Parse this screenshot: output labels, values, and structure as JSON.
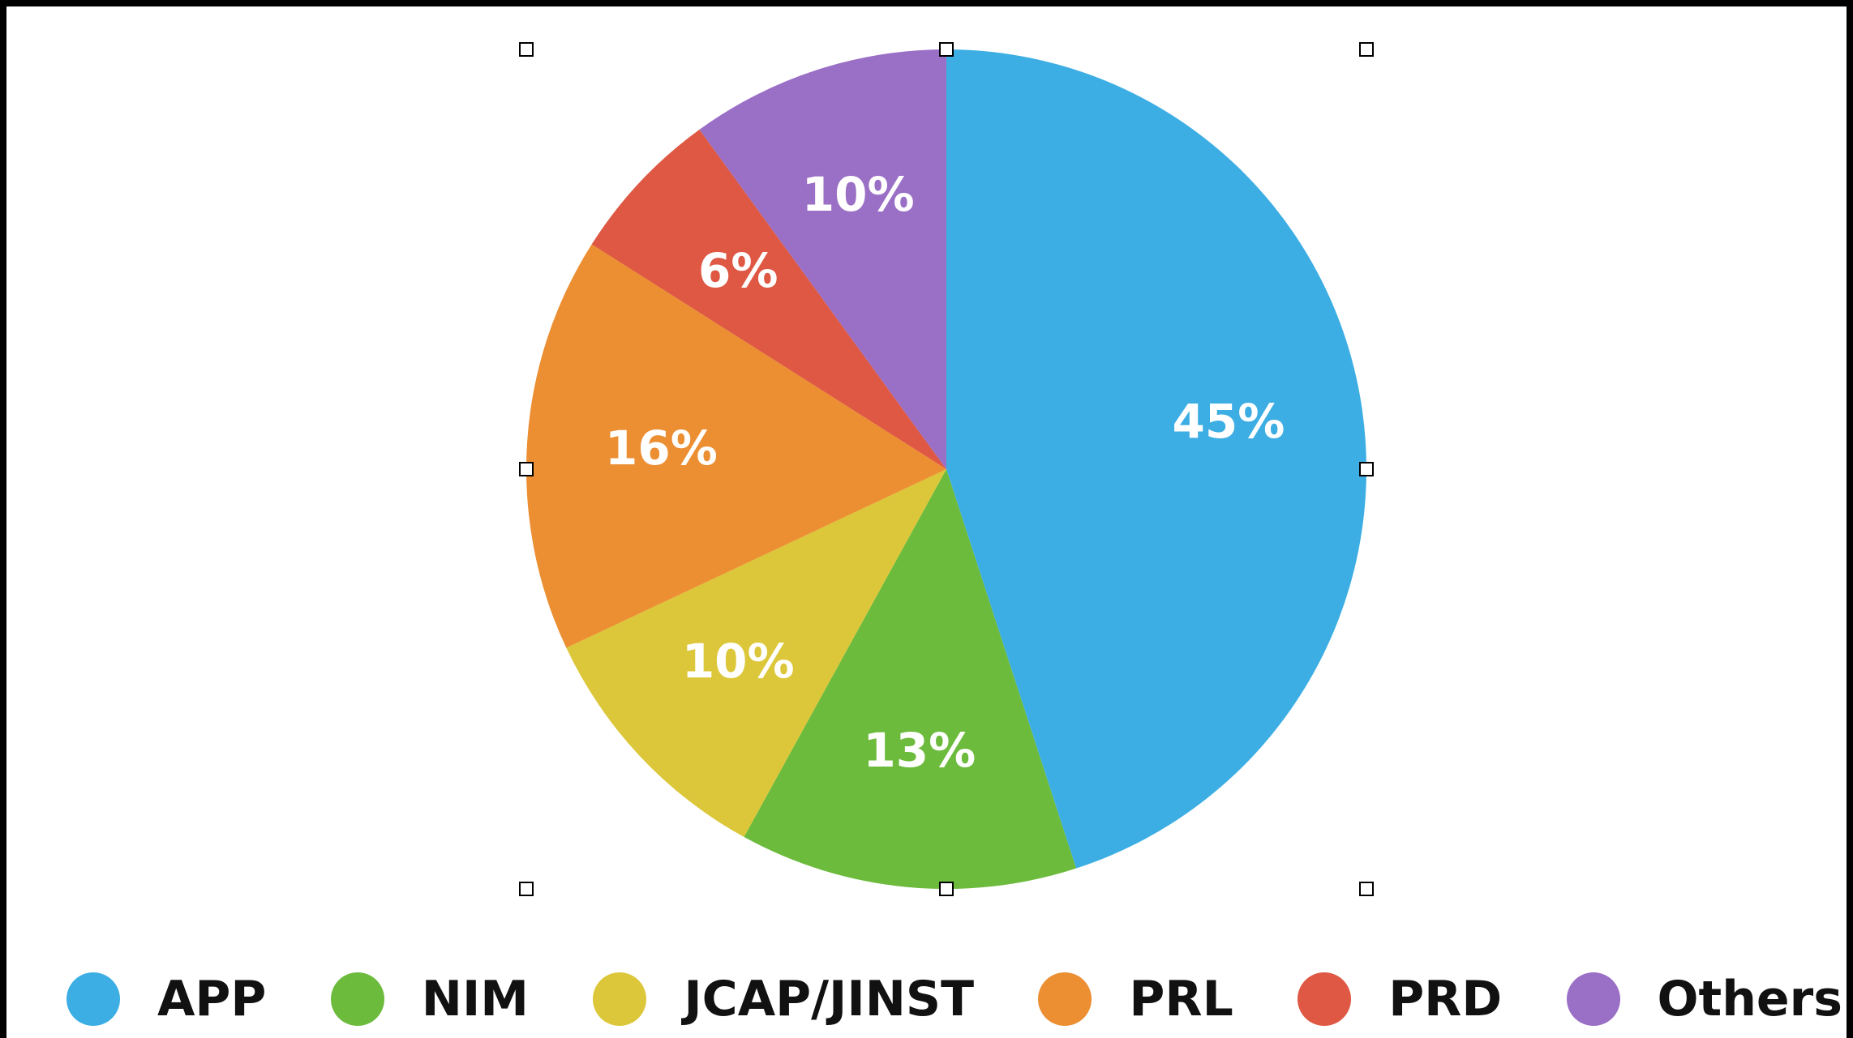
{
  "chart_data": {
    "type": "pie",
    "title": "",
    "start_angle_deg": 0,
    "direction": "clockwise",
    "legend_position": "bottom",
    "slices": [
      {
        "name": "APP",
        "value": 45,
        "label": "45%",
        "color": "#3daee3"
      },
      {
        "name": "NIM",
        "value": 13,
        "label": "13%",
        "color": "#6cbb3c"
      },
      {
        "name": "JCAP/JINST",
        "value": 10,
        "label": "10%",
        "color": "#dcc73a"
      },
      {
        "name": "PRL",
        "value": 16,
        "label": "16%",
        "color": "#ec8e32"
      },
      {
        "name": "PRD",
        "value": 6,
        "label": "6%",
        "color": "#de5843"
      },
      {
        "name": "Others",
        "value": 10,
        "label": "10%",
        "color": "#9a6fc6"
      }
    ]
  }
}
